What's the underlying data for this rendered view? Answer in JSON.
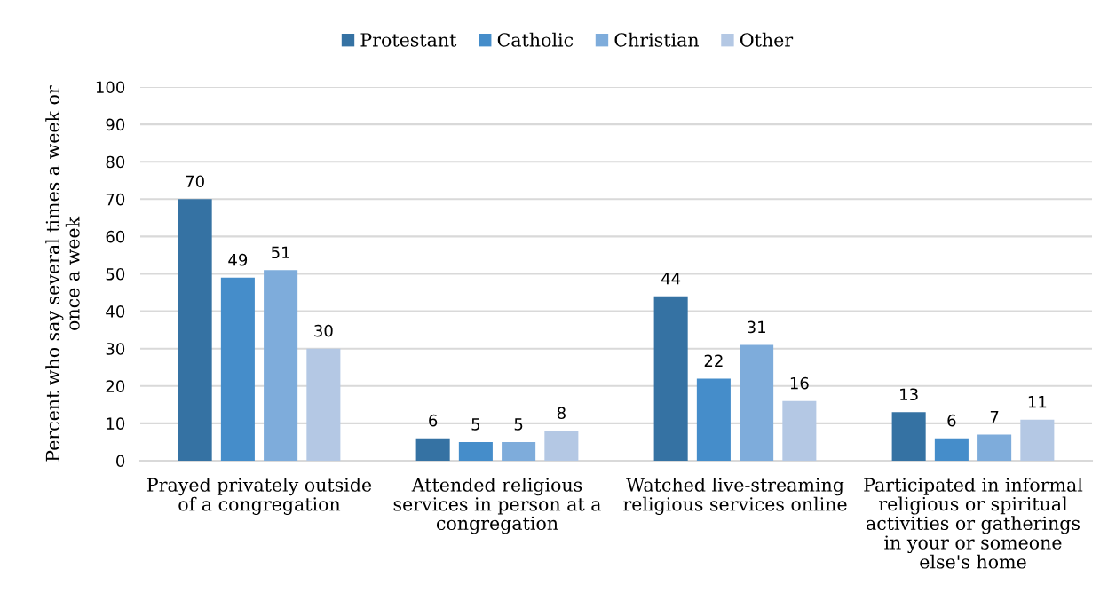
{
  "chart_data": {
    "type": "bar",
    "categories": [
      "Prayed privately outside of a congregation",
      "Attended religious services in person at a congregation",
      "Watched live-streaming religious services online",
      "Participated in informal religious or spiritual activities or gatherings in your or someone else's home"
    ],
    "series": [
      {
        "name": "Protestant",
        "color": "#3572a3",
        "values": [
          70,
          6,
          44,
          13
        ]
      },
      {
        "name": "Catholic",
        "color": "#458dca",
        "values": [
          49,
          5,
          22,
          6
        ]
      },
      {
        "name": "Christian",
        "color": "#7eacdb",
        "values": [
          51,
          5,
          31,
          7
        ]
      },
      {
        "name": "Other",
        "color": "#b4c8e4",
        "values": [
          30,
          8,
          16,
          11
        ]
      }
    ],
    "ylabel": "Percent who say several times a week or once a week",
    "ylim": [
      0,
      100
    ],
    "yticks": [
      0,
      10,
      20,
      30,
      40,
      50,
      60,
      70,
      80,
      90,
      100
    ],
    "grid": "y",
    "legend": "top",
    "data_labels": true
  }
}
